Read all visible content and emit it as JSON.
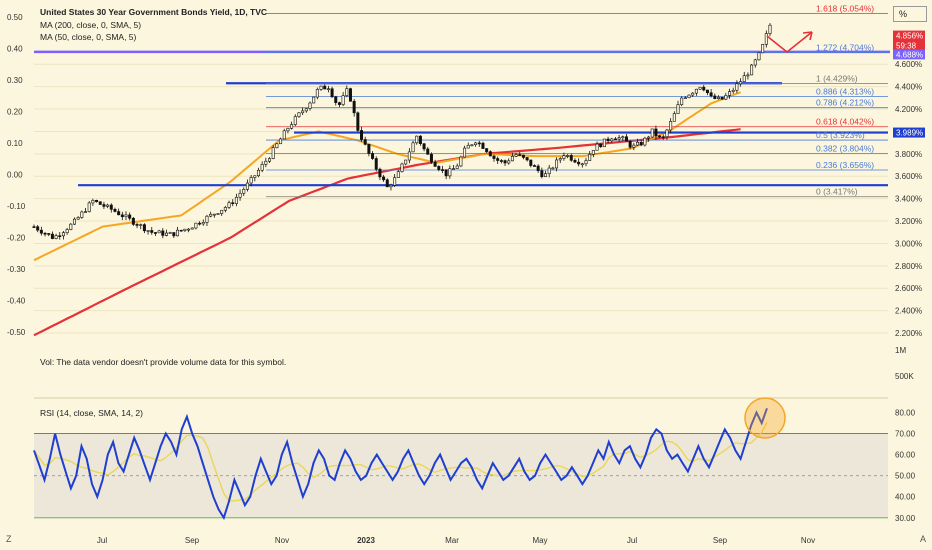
{
  "header": {
    "title": "United States 30 Year Government Bonds Yield, 1D, TVC",
    "ma200": "MA (200, close, 0, SMA, 5)",
    "ma50": "MA (50, close, 0, SMA, 5)",
    "unit_button": "%"
  },
  "volume_note": "Vol: The data vendor doesn't provide volume data for this symbol.",
  "rsi_label": "RSI (14, close, SMA, 14, 2)",
  "corner_left": "Z",
  "corner_right": "A",
  "colors": {
    "background": "#fbf6dd",
    "candle": "#111111",
    "ma200": "#e53238",
    "ma50": "#f5a623",
    "hline": "#1f3fd1",
    "fib_blue": "#4a7bd8",
    "fib_red": "#e53238",
    "fib_gray": "#777777",
    "rsi": "#1f3fd1",
    "rsi_ma": "#e9d75a",
    "highlight": "#f5a623",
    "arrow": "#e53238"
  },
  "chart_data": [
    {
      "type": "candlestick",
      "name": "price",
      "x_ticks": [
        "Jul",
        "Sep",
        "Nov",
        "2023",
        "Mar",
        "May",
        "Jul",
        "Sep",
        "Nov"
      ],
      "left_axis_ticks": [
        "0.50",
        "0.40",
        "0.30",
        "0.20",
        "0.10",
        "0.00",
        "-0.10",
        "-0.20",
        "-0.30",
        "-0.40",
        "-0.50"
      ],
      "right_axis_ticks": [
        "4.600%",
        "4.400%",
        "4.200%",
        "4.000%",
        "3.800%",
        "3.600%",
        "3.400%",
        "3.200%",
        "3.000%",
        "2.800%",
        "2.600%",
        "2.400%",
        "2.200%"
      ],
      "ylim": [
        2.12,
        5.12
      ],
      "price_path": [
        [
          0,
          3.15
        ],
        [
          4,
          3.05
        ],
        [
          8,
          3.18
        ],
        [
          12,
          3.38
        ],
        [
          16,
          3.3
        ],
        [
          20,
          3.2
        ],
        [
          24,
          3.1
        ],
        [
          28,
          3.08
        ],
        [
          32,
          3.15
        ],
        [
          36,
          3.25
        ],
        [
          40,
          3.35
        ],
        [
          44,
          3.55
        ],
        [
          48,
          3.78
        ],
        [
          52,
          4.05
        ],
        [
          56,
          4.25
        ],
        [
          58,
          4.38
        ],
        [
          60,
          4.4
        ],
        [
          62,
          4.22
        ],
        [
          64,
          4.38
        ],
        [
          66,
          4.02
        ],
        [
          68,
          3.82
        ],
        [
          70,
          3.65
        ],
        [
          72,
          3.5
        ],
        [
          74,
          3.6
        ],
        [
          76,
          3.78
        ],
        [
          78,
          3.96
        ],
        [
          80,
          3.8
        ],
        [
          82,
          3.7
        ],
        [
          84,
          3.62
        ],
        [
          86,
          3.68
        ],
        [
          88,
          3.85
        ],
        [
          90,
          3.92
        ],
        [
          92,
          3.85
        ],
        [
          94,
          3.75
        ],
        [
          96,
          3.72
        ],
        [
          98,
          3.8
        ],
        [
          100,
          3.75
        ],
        [
          102,
          3.68
        ],
        [
          104,
          3.6
        ],
        [
          106,
          3.7
        ],
        [
          108,
          3.8
        ],
        [
          110,
          3.75
        ],
        [
          112,
          3.72
        ],
        [
          114,
          3.85
        ],
        [
          116,
          3.9
        ],
        [
          118,
          3.96
        ],
        [
          120,
          3.93
        ],
        [
          122,
          3.86
        ],
        [
          124,
          3.9
        ],
        [
          126,
          4.0
        ],
        [
          128,
          3.92
        ],
        [
          130,
          4.1
        ],
        [
          132,
          4.3
        ],
        [
          134,
          4.35
        ],
        [
          136,
          4.42
        ],
        [
          138,
          4.3
        ],
        [
          140,
          4.28
        ],
        [
          142,
          4.35
        ],
        [
          144,
          4.45
        ],
        [
          146,
          4.55
        ],
        [
          148,
          4.7
        ],
        [
          150,
          4.95
        ]
      ],
      "ma50_path": [
        [
          0,
          2.85
        ],
        [
          14,
          3.15
        ],
        [
          22,
          3.2
        ],
        [
          30,
          3.25
        ],
        [
          40,
          3.55
        ],
        [
          50,
          3.92
        ],
        [
          58,
          4.0
        ],
        [
          66,
          3.92
        ],
        [
          74,
          3.8
        ],
        [
          82,
          3.72
        ],
        [
          92,
          3.8
        ],
        [
          102,
          3.78
        ],
        [
          112,
          3.78
        ],
        [
          122,
          3.85
        ],
        [
          130,
          4.02
        ],
        [
          138,
          4.25
        ],
        [
          144,
          4.35
        ]
      ],
      "ma200_path": [
        [
          0,
          2.18
        ],
        [
          20,
          2.62
        ],
        [
          40,
          3.05
        ],
        [
          52,
          3.38
        ],
        [
          64,
          3.58
        ],
        [
          78,
          3.7
        ],
        [
          92,
          3.8
        ],
        [
          106,
          3.85
        ],
        [
          118,
          3.9
        ],
        [
          130,
          3.95
        ],
        [
          144,
          4.02
        ]
      ],
      "horizontal_levels": [
        4.71,
        4.43,
        3.99,
        3.52
      ],
      "fib_levels": [
        {
          "ratio": "1.618",
          "label": "1.618 (5.054%)",
          "value": 5.054,
          "color": "red"
        },
        {
          "ratio": "1.272",
          "label": "1.272 (4.704%)",
          "value": 4.704,
          "color": "blue"
        },
        {
          "ratio": "1",
          "label": "1 (4.429%)",
          "value": 4.429,
          "color": "gray"
        },
        {
          "ratio": "0.886",
          "label": "0.886 (4.313%)",
          "value": 4.313,
          "color": "blue"
        },
        {
          "ratio": "0.786",
          "label": "0.786 (4.212%)",
          "value": 4.212,
          "color": "blue"
        },
        {
          "ratio": "0.618",
          "label": "0.618 (4.042%)",
          "value": 4.042,
          "color": "red"
        },
        {
          "ratio": "0.5",
          "label": "0.5 (3.923%)",
          "value": 3.923,
          "color": "blue"
        },
        {
          "ratio": "0.382",
          "label": "0.382 (3.804%)",
          "value": 3.804,
          "color": "blue"
        },
        {
          "ratio": "0.236",
          "label": "0.236 (3.656%)",
          "value": 3.656,
          "color": "blue"
        },
        {
          "ratio": "0",
          "label": "0 (3.417%)",
          "value": 3.417,
          "color": "gray"
        }
      ],
      "badges": [
        {
          "text": "4.856%",
          "sub": "59:38",
          "value": 4.856,
          "color": "#e53238"
        },
        {
          "text": "4.688%",
          "value": 4.688,
          "color": "#7b61ff"
        },
        {
          "text": "3.989%",
          "value": 3.99,
          "color": "#1f3fd1"
        }
      ]
    },
    {
      "type": "line",
      "name": "RSI (14, close, SMA, 14, 2)",
      "right_axis_ticks": [
        "80.00",
        "70.00",
        "60.00",
        "50.00",
        "40.00",
        "30.00"
      ],
      "ylim": [
        28,
        85
      ],
      "levels": [
        70,
        50,
        30
      ],
      "values": [
        62,
        55,
        48,
        58,
        70,
        60,
        52,
        44,
        50,
        64,
        58,
        46,
        40,
        48,
        60,
        66,
        56,
        52,
        60,
        68,
        62,
        55,
        48,
        56,
        64,
        70,
        66,
        60,
        72,
        78,
        70,
        64,
        56,
        48,
        40,
        34,
        30,
        38,
        48,
        42,
        36,
        40,
        50,
        58,
        52,
        46,
        50,
        60,
        66,
        56,
        48,
        40,
        46,
        56,
        62,
        58,
        50,
        48,
        56,
        62,
        58,
        52,
        48,
        50,
        56,
        60,
        56,
        52,
        48,
        52,
        58,
        62,
        56,
        50,
        46,
        50,
        56,
        60,
        54,
        48,
        52,
        56,
        58,
        54,
        48,
        44,
        50,
        56,
        52,
        48,
        50,
        54,
        58,
        52,
        48,
        50,
        56,
        60,
        56,
        52,
        48,
        50,
        54,
        50,
        46,
        50,
        56,
        62,
        58,
        66,
        60,
        56,
        62,
        64,
        58,
        54,
        60,
        68,
        72,
        70,
        62,
        58,
        60,
        56,
        52,
        58,
        64,
        58,
        54,
        60,
        66,
        72,
        68,
        62,
        58,
        66,
        74,
        80,
        75,
        82
      ]
    }
  ]
}
